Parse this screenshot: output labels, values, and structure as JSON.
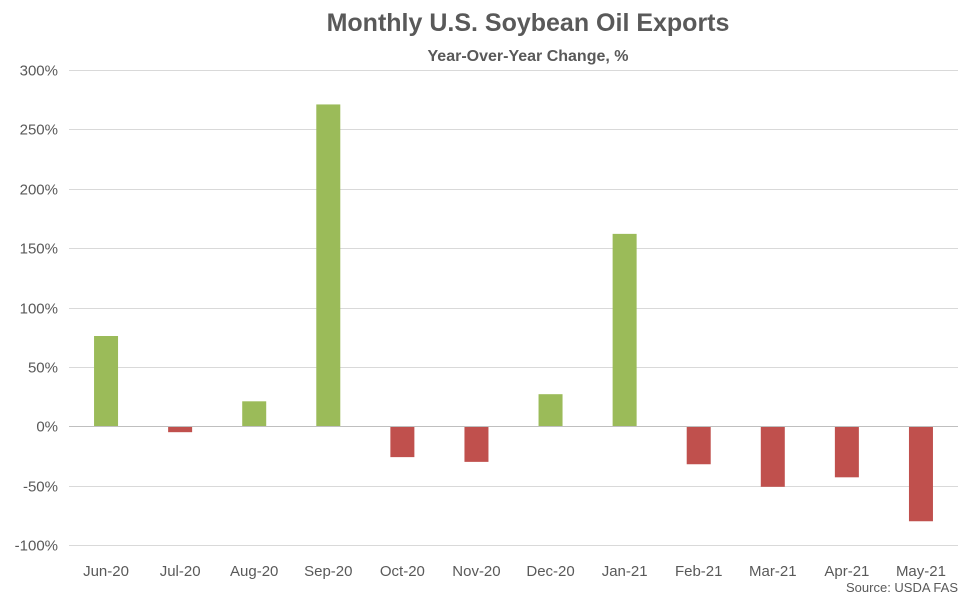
{
  "chart_data": {
    "type": "bar",
    "title": "Monthly U.S. Soybean Oil Exports",
    "subtitle": "Year-Over-Year Change, %",
    "categories": [
      "Jun-20",
      "Jul-20",
      "Aug-20",
      "Sep-20",
      "Oct-20",
      "Nov-20",
      "Dec-20",
      "Jan-21",
      "Feb-21",
      "Mar-21",
      "Apr-21",
      "May-21"
    ],
    "values": [
      76,
      -5,
      21,
      271,
      -26,
      -30,
      27,
      162,
      -32,
      -51,
      -43,
      -80
    ],
    "ylim": [
      -100,
      300
    ],
    "yticks": [
      300,
      250,
      200,
      150,
      100,
      50,
      0,
      -50,
      -100
    ],
    "ytick_labels": [
      "300%",
      "250%",
      "200%",
      "150%",
      "100%",
      "50%",
      "0%",
      "-50%",
      "-100%"
    ],
    "grid": true,
    "legend": "none",
    "colors": {
      "positive": "#9bbb59",
      "negative": "#c0504d"
    },
    "source": "Source: USDA FAS"
  }
}
